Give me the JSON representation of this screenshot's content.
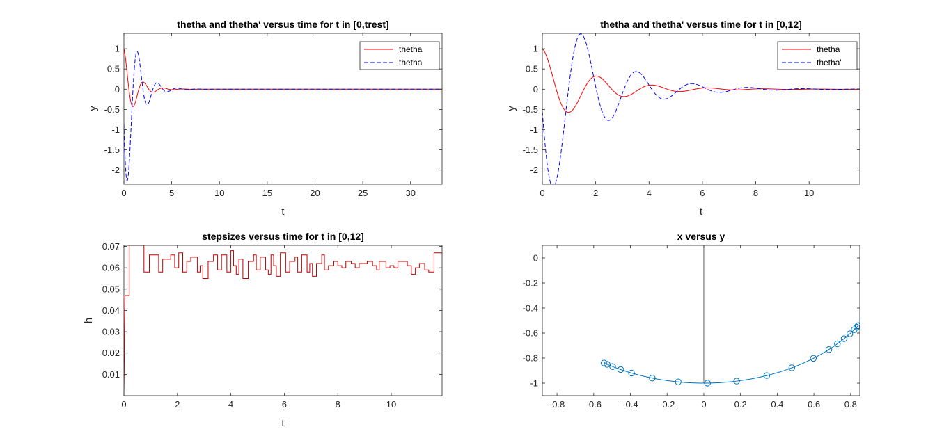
{
  "figure": {
    "background": "#ffffff"
  },
  "chart_data": [
    {
      "type": "line",
      "title": "thetha and thetha' versus time for t in [0,trest]",
      "xlabel": "t",
      "ylabel": "y",
      "xlim": [
        0,
        33.3
      ],
      "ylim": [
        -2.35,
        1.38
      ],
      "xticks": [
        0,
        5,
        10,
        15,
        20,
        25,
        30
      ],
      "yticks": [
        -2,
        -1.5,
        -1,
        -0.5,
        0,
        0.5,
        1
      ],
      "legend": {
        "position": "top-right",
        "entries": [
          "thetha",
          "thetha'"
        ]
      },
      "model": {
        "omega": 3.02,
        "decay": 0.85,
        "t_end": 33.3
      },
      "series": [
        {
          "name": "thetha",
          "color": "#ff0000",
          "dash": "solid",
          "kind": "theta"
        },
        {
          "name": "thetha'",
          "color": "#0000ff",
          "dash": "dashed",
          "kind": "thetadot"
        }
      ]
    },
    {
      "type": "line",
      "title": "thetha and thetha' versus time for t in [0,12]",
      "xlabel": "t",
      "ylabel": "y",
      "xlim": [
        0,
        11.9
      ],
      "ylim": [
        -2.35,
        1.38
      ],
      "xticks": [
        0,
        2,
        4,
        6,
        8,
        10
      ],
      "yticks": [
        -2,
        -1.5,
        -1,
        -0.5,
        0,
        0.5,
        1
      ],
      "legend": {
        "position": "top-right",
        "entries": [
          "thetha",
          "thetha'"
        ]
      },
      "model": {
        "omega": 3.02,
        "decay": 0.55,
        "t_end": 11.9
      },
      "series": [
        {
          "name": "thetha",
          "color": "#ff0000",
          "dash": "solid",
          "kind": "theta"
        },
        {
          "name": "thetha'",
          "color": "#0000ff",
          "dash": "dashed",
          "kind": "thetadot"
        }
      ]
    },
    {
      "type": "line",
      "title": "stepsizes versus time for t in [0,12]",
      "xlabel": "t",
      "ylabel": "h",
      "xlim": [
        0,
        11.9
      ],
      "ylim": [
        0,
        0.0705
      ],
      "xticks": [
        0,
        2,
        4,
        6,
        8,
        10
      ],
      "yticks": [
        0.01,
        0.02,
        0.03,
        0.04,
        0.05,
        0.06,
        0.07
      ],
      "series": [
        {
          "name": "",
          "color": "#c00000",
          "kind": "step",
          "points": [
            [
              0,
              0.001
            ],
            [
              0.04,
              0.047
            ],
            [
              0.2,
              0.047
            ],
            [
              0.2,
              0.0705
            ],
            [
              0.75,
              0.0705
            ],
            [
              0.75,
              0.058
            ],
            [
              0.95,
              0.058
            ],
            [
              0.95,
              0.066
            ],
            [
              1.3,
              0.066
            ],
            [
              1.3,
              0.058
            ],
            [
              1.45,
              0.058
            ],
            [
              1.45,
              0.064
            ],
            [
              1.75,
              0.064
            ],
            [
              1.75,
              0.066
            ],
            [
              1.9,
              0.066
            ],
            [
              1.9,
              0.06
            ],
            [
              2.05,
              0.06
            ],
            [
              2.05,
              0.067
            ],
            [
              2.2,
              0.067
            ],
            [
              2.2,
              0.058
            ],
            [
              2.35,
              0.058
            ],
            [
              2.35,
              0.063
            ],
            [
              2.5,
              0.063
            ],
            [
              2.5,
              0.065
            ],
            [
              2.75,
              0.065
            ],
            [
              2.75,
              0.058
            ],
            [
              2.85,
              0.058
            ],
            [
              2.85,
              0.061
            ],
            [
              2.95,
              0.061
            ],
            [
              2.95,
              0.055
            ],
            [
              3.15,
              0.055
            ],
            [
              3.15,
              0.063
            ],
            [
              3.35,
              0.063
            ],
            [
              3.35,
              0.066
            ],
            [
              3.5,
              0.066
            ],
            [
              3.5,
              0.059
            ],
            [
              3.65,
              0.059
            ],
            [
              3.65,
              0.066
            ],
            [
              3.85,
              0.066
            ],
            [
              3.85,
              0.058
            ],
            [
              4.0,
              0.058
            ],
            [
              4.0,
              0.068
            ],
            [
              4.1,
              0.068
            ],
            [
              4.1,
              0.061
            ],
            [
              4.2,
              0.061
            ],
            [
              4.2,
              0.057
            ],
            [
              4.3,
              0.057
            ],
            [
              4.3,
              0.064
            ],
            [
              4.45,
              0.064
            ],
            [
              4.45,
              0.055
            ],
            [
              4.65,
              0.055
            ],
            [
              4.65,
              0.063
            ],
            [
              4.85,
              0.063
            ],
            [
              4.85,
              0.066
            ],
            [
              4.95,
              0.066
            ],
            [
              4.95,
              0.059
            ],
            [
              5.1,
              0.059
            ],
            [
              5.1,
              0.065
            ],
            [
              5.3,
              0.065
            ],
            [
              5.3,
              0.059
            ],
            [
              5.4,
              0.059
            ],
            [
              5.4,
              0.057
            ],
            [
              5.5,
              0.057
            ],
            [
              5.5,
              0.066
            ],
            [
              5.6,
              0.066
            ],
            [
              5.6,
              0.061
            ],
            [
              5.7,
              0.061
            ],
            [
              5.7,
              0.056
            ],
            [
              5.85,
              0.056
            ],
            [
              5.85,
              0.067
            ],
            [
              6.05,
              0.067
            ],
            [
              6.05,
              0.058
            ],
            [
              6.2,
              0.058
            ],
            [
              6.2,
              0.063
            ],
            [
              6.4,
              0.063
            ],
            [
              6.4,
              0.065
            ],
            [
              6.5,
              0.065
            ],
            [
              6.5,
              0.058
            ],
            [
              6.65,
              0.058
            ],
            [
              6.65,
              0.066
            ],
            [
              6.85,
              0.066
            ],
            [
              6.85,
              0.058
            ],
            [
              6.95,
              0.058
            ],
            [
              6.95,
              0.062
            ],
            [
              7.05,
              0.062
            ],
            [
              7.05,
              0.056
            ],
            [
              7.2,
              0.056
            ],
            [
              7.2,
              0.062
            ],
            [
              7.4,
              0.062
            ],
            [
              7.4,
              0.066
            ],
            [
              7.5,
              0.066
            ],
            [
              7.5,
              0.059
            ],
            [
              7.65,
              0.059
            ],
            [
              7.65,
              0.061
            ],
            [
              7.85,
              0.061
            ],
            [
              7.85,
              0.063
            ],
            [
              8.0,
              0.063
            ],
            [
              8.0,
              0.061
            ],
            [
              8.15,
              0.061
            ],
            [
              8.15,
              0.06
            ],
            [
              8.3,
              0.06
            ],
            [
              8.3,
              0.063
            ],
            [
              8.5,
              0.063
            ],
            [
              8.5,
              0.062
            ],
            [
              8.65,
              0.062
            ],
            [
              8.65,
              0.06
            ],
            [
              8.8,
              0.06
            ],
            [
              8.8,
              0.062
            ],
            [
              9.1,
              0.062
            ],
            [
              9.1,
              0.063
            ],
            [
              9.3,
              0.063
            ],
            [
              9.3,
              0.061
            ],
            [
              9.45,
              0.061
            ],
            [
              9.45,
              0.059
            ],
            [
              9.55,
              0.059
            ],
            [
              9.55,
              0.063
            ],
            [
              9.8,
              0.063
            ],
            [
              9.8,
              0.06
            ],
            [
              9.95,
              0.06
            ],
            [
              9.95,
              0.061
            ],
            [
              10.1,
              0.061
            ],
            [
              10.1,
              0.06
            ],
            [
              10.25,
              0.06
            ],
            [
              10.25,
              0.063
            ],
            [
              10.6,
              0.063
            ],
            [
              10.6,
              0.061
            ],
            [
              10.75,
              0.061
            ],
            [
              10.75,
              0.057
            ],
            [
              10.9,
              0.057
            ],
            [
              10.9,
              0.06
            ],
            [
              11.05,
              0.06
            ],
            [
              11.05,
              0.062
            ],
            [
              11.25,
              0.062
            ],
            [
              11.25,
              0.059
            ],
            [
              11.4,
              0.059
            ],
            [
              11.4,
              0.058
            ],
            [
              11.6,
              0.058
            ],
            [
              11.6,
              0.067
            ],
            [
              11.9,
              0.067
            ]
          ]
        }
      ]
    },
    {
      "type": "line",
      "title": "x versus y",
      "xlabel": "",
      "ylabel": "",
      "xlim": [
        -0.88,
        0.85
      ],
      "ylim": [
        -1.1,
        0.1
      ],
      "xticks": [
        -0.8,
        -0.6,
        -0.4,
        -0.2,
        0,
        0.2,
        0.4,
        0.6,
        0.8
      ],
      "yticks": [
        -1,
        -0.8,
        -0.6,
        -0.4,
        -0.2,
        0
      ],
      "series": [
        {
          "name": "",
          "color": "#0072bd",
          "kind": "pendulum",
          "arc_angle_range": [
            -0.575,
            1.0
          ],
          "marker_angles": [
            -0.575,
            -0.555,
            -0.52,
            -0.47,
            -0.405,
            -0.285,
            -0.14,
            0.02,
            0.18,
            0.35,
            0.5,
            0.64,
            0.75,
            0.815,
            0.87,
            0.92,
            0.96,
            0.985,
            0.997,
            1.0
          ],
          "rod_angle": 0.0
        }
      ]
    }
  ]
}
